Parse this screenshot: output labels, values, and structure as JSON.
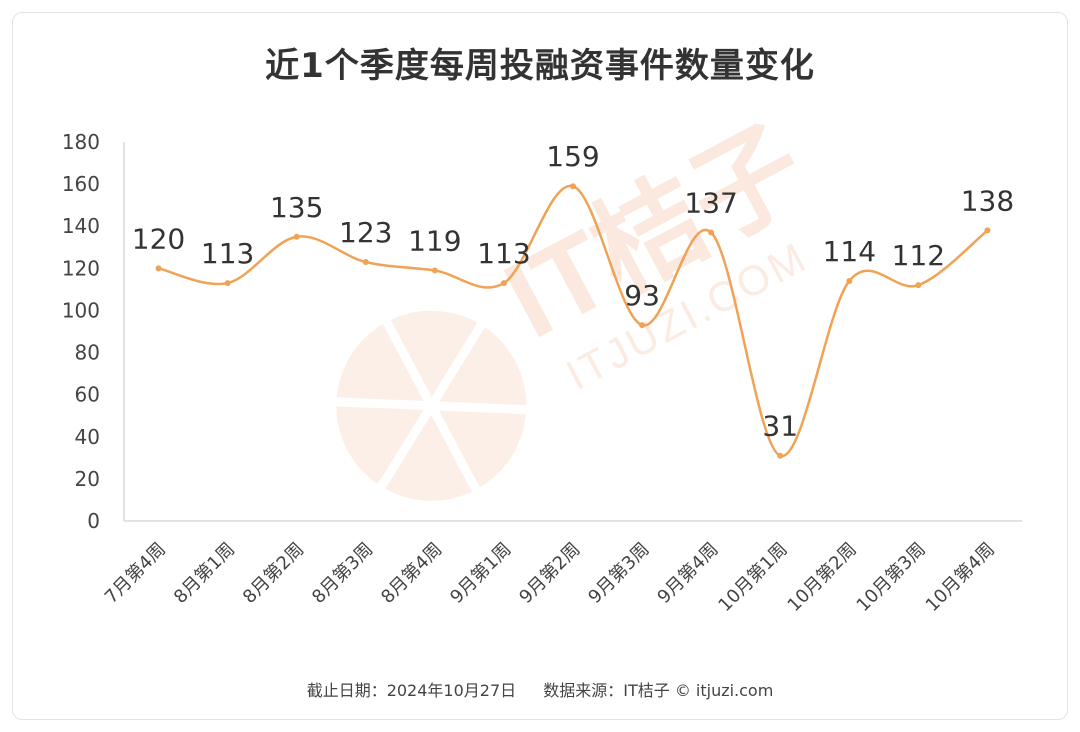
{
  "chart_data": {
    "type": "line",
    "title": "近1个季度每周投融资事件数量变化",
    "categories": [
      "7月第4周",
      "8月第1周",
      "8月第2周",
      "8月第3周",
      "8月第4周",
      "9月第1周",
      "9月第2周",
      "9月第3周",
      "9月第4周",
      "10月第1周",
      "10月第2周",
      "10月第3周",
      "10月第4周"
    ],
    "series": [
      {
        "values": [
          120,
          113,
          135,
          123,
          119,
          113,
          159,
          93,
          137,
          31,
          114,
          112,
          138
        ]
      }
    ],
    "ylim": [
      0,
      180
    ],
    "yticks": [
      0,
      20,
      40,
      60,
      80,
      100,
      120,
      140,
      160,
      180
    ],
    "grid": false,
    "line_color": "#f0a255",
    "smooth": true,
    "data_labels": true
  },
  "footer": {
    "date": "截止日期：2024年10月27日",
    "source": "数据来源：IT桔子 © itjuzi.com"
  },
  "watermark": {
    "text": "IT桔子",
    "sub": "ITJUZI.COM",
    "color": "#f7d9c9"
  }
}
